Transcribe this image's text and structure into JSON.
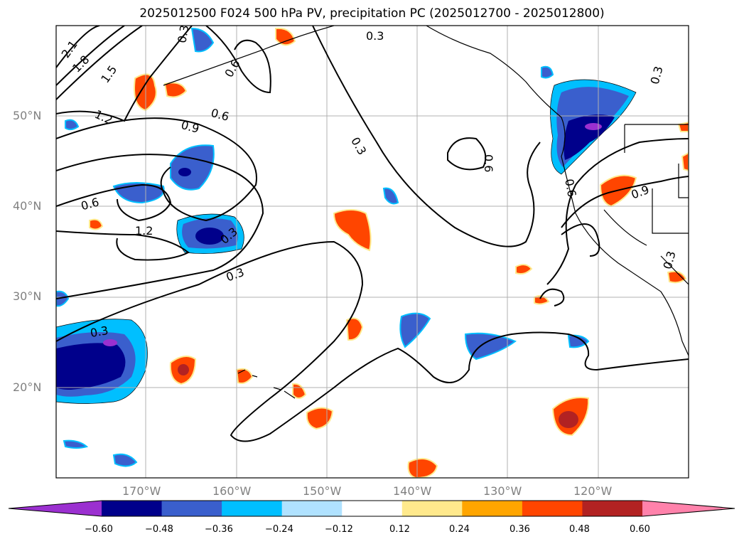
{
  "title": "2025012500 F024 500 hPa PV, precipitation PC (2025012700 - 2025012800)",
  "map": {
    "lat_labels": [
      "50°N",
      "40°N",
      "30°N",
      "20°N"
    ],
    "lon_labels": [
      "170°W",
      "160°W",
      "150°W",
      "140°W",
      "130°W",
      "120°W"
    ],
    "contour_labels": [
      "2.1",
      "1.8",
      "1.5",
      "1.2",
      "0.9",
      "0.6",
      "0.3",
      "0.6",
      "0.6",
      "1.2",
      "0.3",
      "0.3",
      "0.3",
      "0.3",
      "0.6",
      "0.9",
      "0.6",
      "0.3",
      "0.3",
      "0.3"
    ]
  },
  "colorbar": {
    "labels": [
      "−0.60",
      "−0.48",
      "−0.36",
      "−0.24",
      "−0.12",
      "0.12",
      "0.24",
      "0.36",
      "0.48",
      "0.60"
    ],
    "colors": [
      "#9b30d0",
      "#00008b",
      "#3a5fcd",
      "#00bfff",
      "#b0e2ff",
      "#ffffff",
      "#ffe98c",
      "#ffa500",
      "#ff4500",
      "#b22222",
      "#ff82ab"
    ]
  }
}
